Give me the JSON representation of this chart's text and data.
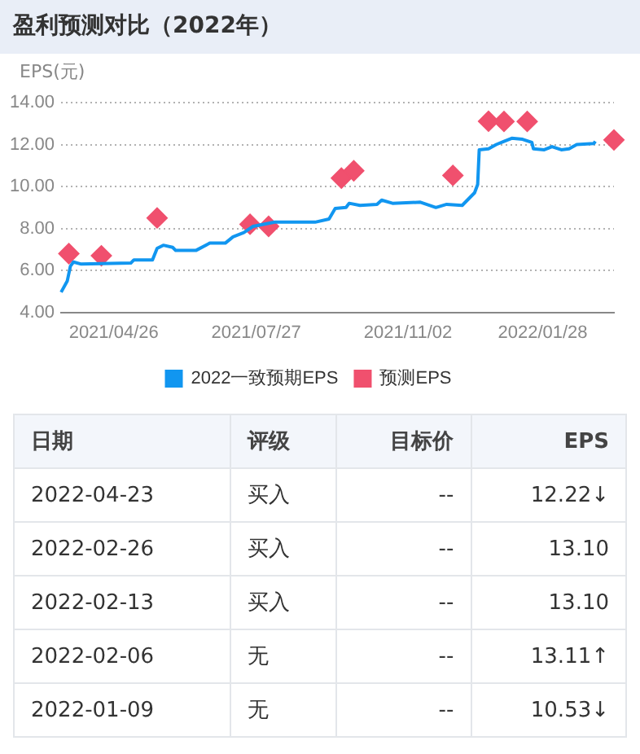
{
  "chart_data": [
    {
      "type": "line",
      "title": "盈利预测对比（2022年）",
      "ylabel": "EPS(元)",
      "xlim": [
        "2021-03-23",
        "2022-03-15"
      ],
      "xticks": [
        {
          "value": "2021-04-26",
          "label": "2021/04/26"
        },
        {
          "value": "2021-07-27",
          "label": "2021/07/27"
        },
        {
          "value": "2021-11-02",
          "label": "2021/11/02"
        },
        {
          "value": "2022-01-28",
          "label": "2022/01/28"
        }
      ],
      "ylim": [
        4,
        14
      ],
      "yticks": [
        {
          "value": 4,
          "label": "4.00"
        },
        {
          "value": 6,
          "label": "6.00"
        },
        {
          "value": 8,
          "label": "8.00"
        },
        {
          "value": 10,
          "label": "10.00"
        },
        {
          "value": 12,
          "label": "12.00"
        },
        {
          "value": 14,
          "label": "14.00"
        }
      ],
      "grid": "y",
      "legend": "bottom",
      "line_style": "solid",
      "series": [
        {
          "name": "2022一致预期EPS",
          "type": "line",
          "color": "#1196f0",
          "marker": "none",
          "x": [
            "2021-03-23",
            "2021-03-27",
            "2021-03-29",
            "2021-03-31",
            "2021-04-05",
            "2021-05-07",
            "2021-05-09",
            "2021-05-16",
            "2021-05-21",
            "2021-05-24",
            "2021-05-28",
            "2021-06-03",
            "2021-06-05",
            "2021-06-18",
            "2021-06-27",
            "2021-07-07",
            "2021-07-12",
            "2021-07-19",
            "2021-07-25",
            "2021-08-08",
            "2021-08-29",
            "2021-09-03",
            "2021-09-12",
            "2021-09-16",
            "2021-09-23",
            "2021-09-25",
            "2021-10-02",
            "2021-10-13",
            "2021-10-16",
            "2021-10-23",
            "2021-11-10",
            "2021-11-20",
            "2021-11-27",
            "2021-12-07",
            "2021-12-11",
            "2021-12-15",
            "2021-12-17",
            "2021-12-18",
            "2021-12-24",
            "2021-12-29",
            "2022-01-03",
            "2022-01-08",
            "2022-01-15",
            "2022-01-21",
            "2022-01-22",
            "2022-01-29",
            "2022-02-03",
            "2022-02-09",
            "2022-02-14",
            "2022-02-19",
            "2022-03-02",
            "2022-03-03"
          ],
          "values": [
            4.96,
            5.5,
            6.2,
            6.4,
            6.3,
            6.35,
            6.5,
            6.5,
            6.5,
            7.05,
            7.2,
            7.1,
            6.95,
            6.95,
            7.3,
            7.3,
            7.6,
            7.8,
            8.1,
            8.3,
            8.3,
            8.3,
            8.45,
            8.95,
            9.0,
            9.2,
            9.1,
            9.15,
            9.35,
            9.2,
            9.25,
            9.0,
            9.15,
            9.1,
            9.4,
            9.7,
            10.1,
            11.75,
            11.8,
            12.0,
            12.15,
            12.3,
            12.25,
            12.1,
            11.8,
            11.75,
            11.9,
            11.75,
            11.8,
            12.0,
            12.05,
            12.15
          ]
        },
        {
          "name": "预测EPS",
          "type": "scatter",
          "color": "#f0506e",
          "marker": "diamond",
          "x": [
            "2021-03-28",
            "2021-04-18",
            "2021-05-24",
            "2021-07-23",
            "2021-08-04",
            "2021-09-20",
            "2021-09-28",
            "2021-12-01",
            "2021-12-24",
            "2022-01-03",
            "2022-01-18",
            "2022-03-15"
          ],
          "values": [
            6.8,
            6.7,
            8.5,
            8.2,
            8.1,
            10.4,
            10.75,
            10.53,
            13.11,
            13.1,
            13.1,
            12.22
          ]
        }
      ]
    },
    {
      "type": "other",
      "categories": [
        "日期",
        "评级",
        "目标价",
        "EPS"
      ],
      "annotations": [
        "2022-04-23",
        "买入",
        "--",
        "12.22↓",
        "2022-02-26",
        "买入",
        "--",
        "13.10",
        "2022-02-13",
        "买入",
        "--",
        "13.10",
        "2022-02-06",
        "无",
        "--",
        "13.11↑",
        "2022-01-09",
        "无",
        "--",
        "10.53↓"
      ]
    }
  ]
}
